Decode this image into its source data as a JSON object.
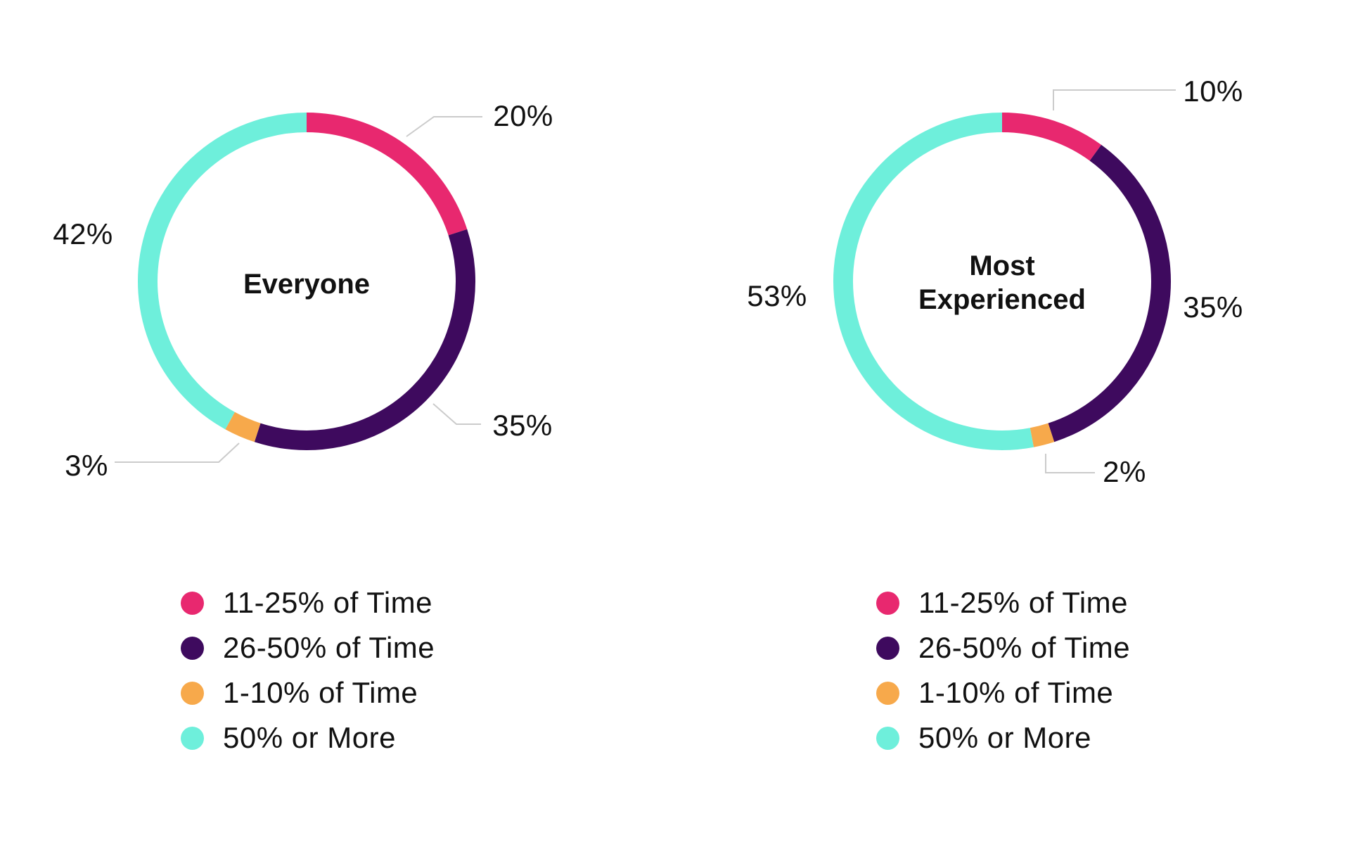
{
  "colors": {
    "pink": "#E8286F",
    "purple": "#3E0A5E",
    "orange": "#F7A94B",
    "teal": "#6EEFDB",
    "leader_line": "#CBCBCB",
    "text": "#111111"
  },
  "chart_data": [
    {
      "type": "donut",
      "title": "Everyone",
      "start": "top",
      "direction": "clockwise",
      "segments": [
        {
          "label": "11-25% of Time",
          "value": 20,
          "display": "20%",
          "color_key": "pink"
        },
        {
          "label": "26-50% of Time",
          "value": 35,
          "display": "35%",
          "color_key": "purple"
        },
        {
          "label": "1-10% of Time",
          "value": 3,
          "display": "3%",
          "color_key": "orange"
        },
        {
          "label": "50% or More",
          "value": 42,
          "display": "42%",
          "color_key": "teal"
        }
      ]
    },
    {
      "type": "donut",
      "title": "Most Experienced",
      "start": "top",
      "direction": "clockwise",
      "segments": [
        {
          "label": "11-25% of Time",
          "value": 10,
          "display": "10%",
          "color_key": "pink"
        },
        {
          "label": "26-50% of Time",
          "value": 35,
          "display": "35%",
          "color_key": "purple"
        },
        {
          "label": "1-10% of Time",
          "value": 2,
          "display": "2%",
          "color_key": "orange"
        },
        {
          "label": "50% or More",
          "value": 53,
          "display": "53%",
          "color_key": "teal"
        }
      ]
    }
  ],
  "legend": {
    "items": [
      {
        "label": "11-25% of Time",
        "color_key": "pink"
      },
      {
        "label": "26-50% of Time",
        "color_key": "purple"
      },
      {
        "label": "1-10% of Time",
        "color_key": "orange"
      },
      {
        "label": "50% or More",
        "color_key": "teal"
      }
    ]
  }
}
